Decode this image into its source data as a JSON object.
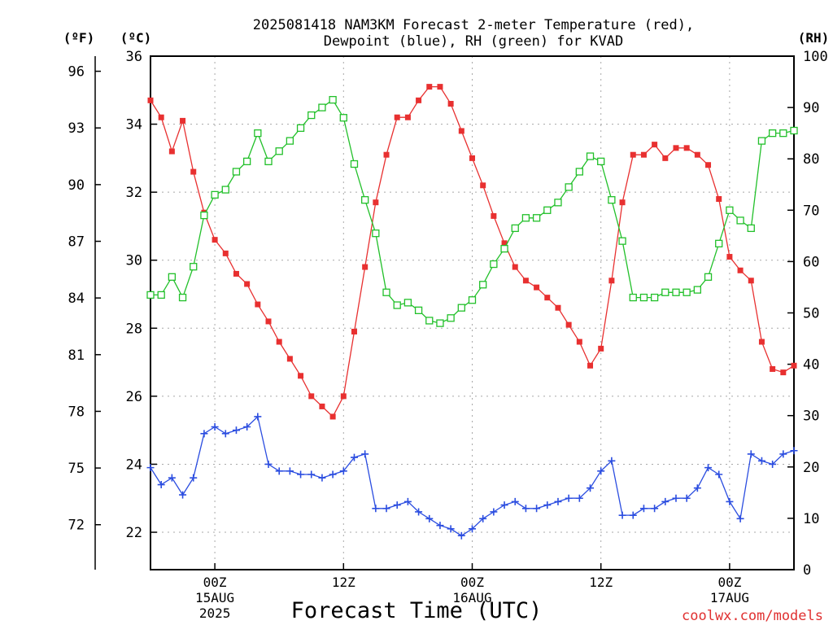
{
  "chart_data": {
    "type": "line",
    "title_line1": "2025081418 NAM3KM Forecast 2-meter Temperature (red),",
    "title_line2": "Dewpoint (blue), RH (green) for KVAD",
    "xlabel": "Forecast Time (UTC)",
    "credit": "coolwx.com/models",
    "unit_f": "(ºF)",
    "unit_c": "(ºC)",
    "unit_rh": "(RH)",
    "x_range_hours": [
      6,
      66
    ],
    "celsius_range": [
      20.9,
      36
    ],
    "rh_range": [
      0,
      100
    ],
    "y_ticks_c": [
      "36",
      "34",
      "32",
      "30",
      "28",
      "26",
      "24",
      "22"
    ],
    "y_ticks_c_values": [
      36,
      34,
      32,
      30,
      28,
      26,
      24,
      22
    ],
    "y_ticks_f": [
      "96",
      "93",
      "90",
      "87",
      "84",
      "81",
      "78",
      "75",
      "72"
    ],
    "y_ticks_f_values": [
      96,
      93,
      90,
      87,
      84,
      81,
      78,
      75,
      72
    ],
    "y_ticks_rh": [
      "100",
      "90",
      "80",
      "70",
      "60",
      "50",
      "40",
      "30",
      "20",
      "10",
      "0"
    ],
    "y_ticks_rh_values": [
      100,
      90,
      80,
      70,
      60,
      50,
      40,
      30,
      20,
      10,
      0
    ],
    "x_ticks": [
      {
        "hour": 12,
        "l1": "00Z",
        "l2": "15AUG",
        "l3": "2025"
      },
      {
        "hour": 24,
        "l1": "12Z",
        "l2": "",
        "l3": ""
      },
      {
        "hour": 36,
        "l1": "00Z",
        "l2": "16AUG",
        "l3": ""
      },
      {
        "hour": 48,
        "l1": "12Z",
        "l2": "",
        "l3": ""
      },
      {
        "hour": 60,
        "l1": "00Z",
        "l2": "17AUG",
        "l3": ""
      }
    ],
    "x_hours": [
      6,
      7,
      8,
      9,
      10,
      11,
      12,
      13,
      14,
      15,
      16,
      17,
      18,
      19,
      20,
      21,
      22,
      23,
      24,
      25,
      26,
      27,
      28,
      29,
      30,
      31,
      32,
      33,
      34,
      35,
      36,
      37,
      38,
      39,
      40,
      41,
      42,
      43,
      44,
      45,
      46,
      47,
      48,
      49,
      50,
      51,
      52,
      53,
      54,
      55,
      56,
      57,
      58,
      59,
      60,
      61,
      62,
      63,
      64,
      65,
      66
    ],
    "series": [
      {
        "name": "Temperature",
        "color": "#e83030",
        "marker": "filled-square",
        "axis": "celsius",
        "values": [
          34.7,
          34.2,
          33.2,
          34.1,
          32.6,
          31.4,
          30.6,
          30.2,
          29.6,
          29.3,
          28.7,
          28.2,
          27.6,
          27.1,
          26.6,
          26.0,
          25.7,
          25.4,
          26.0,
          27.9,
          29.8,
          31.7,
          33.1,
          34.2,
          34.2,
          34.7,
          35.1,
          35.1,
          34.6,
          33.8,
          33.0,
          32.2,
          31.3,
          30.5,
          29.8,
          29.4,
          29.2,
          28.9,
          28.6,
          28.1,
          27.6,
          26.9,
          27.4,
          29.4,
          31.7,
          33.1,
          33.1,
          33.4,
          33.0,
          33.3,
          33.3,
          33.1,
          32.8,
          31.8,
          30.1,
          29.7,
          29.4,
          27.6,
          26.8,
          26.7,
          26.9
        ]
      },
      {
        "name": "Dewpoint",
        "color": "#2b4de0",
        "marker": "plus",
        "axis": "celsius",
        "values": [
          23.9,
          23.4,
          23.6,
          23.1,
          23.6,
          24.9,
          25.1,
          24.9,
          25.0,
          25.1,
          25.4,
          24.0,
          23.8,
          23.8,
          23.7,
          23.7,
          23.6,
          23.7,
          23.8,
          24.2,
          24.3,
          22.7,
          22.7,
          22.8,
          22.9,
          22.6,
          22.4,
          22.2,
          22.1,
          21.9,
          22.1,
          22.4,
          22.6,
          22.8,
          22.9,
          22.7,
          22.7,
          22.8,
          22.9,
          23.0,
          23.0,
          23.3,
          23.8,
          24.1,
          22.5,
          22.5,
          22.7,
          22.7,
          22.9,
          23.0,
          23.0,
          23.3,
          23.9,
          23.7,
          22.9,
          22.4,
          24.3,
          24.1,
          24.0,
          24.3,
          24.4
        ]
      },
      {
        "name": "RH",
        "color": "#22c02a",
        "marker": "open-square",
        "axis": "rh",
        "values": [
          53.5,
          53.5,
          57,
          53,
          59,
          69,
          73,
          74,
          77.5,
          79.5,
          85,
          79.5,
          81.5,
          83.5,
          86,
          88.5,
          90,
          91.5,
          88,
          79,
          72,
          65.5,
          54,
          51.5,
          52,
          50.5,
          48.5,
          48,
          49,
          51,
          52.5,
          55.5,
          59.5,
          62.5,
          66.5,
          68.5,
          68.5,
          70,
          71.5,
          74.5,
          77.5,
          80.5,
          79.5,
          72,
          64,
          53,
          53,
          53,
          54,
          54,
          54,
          54.5,
          57,
          63.5,
          70,
          68,
          66.5,
          83.5,
          85,
          85,
          85.5
        ]
      }
    ]
  }
}
